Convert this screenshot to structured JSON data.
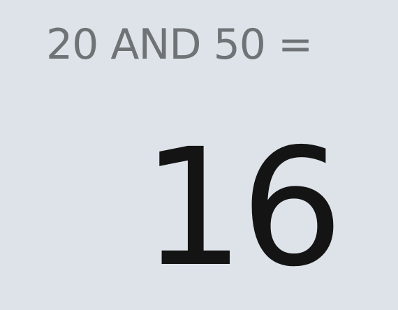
{
  "display": {
    "expression": "20 AND 50 =",
    "result": "16"
  },
  "colors": {
    "background": "#dde3e9",
    "expression_text": "#6f7375",
    "result_text": "#141414"
  }
}
